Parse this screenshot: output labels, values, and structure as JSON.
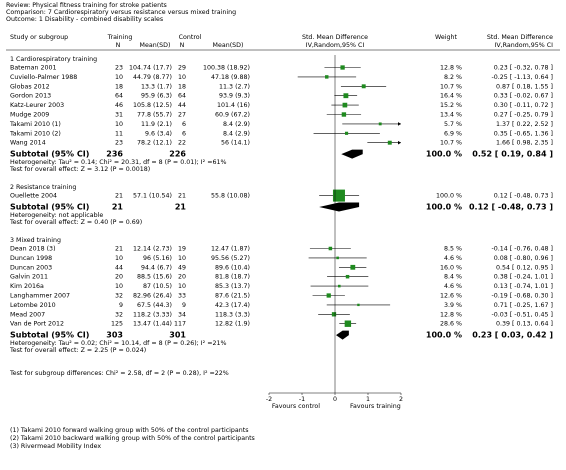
{
  "chart_data": {
    "type": "forest",
    "review": "Review:  Physical fitness training for stroke patients",
    "comparison": "Comparison:  7 Cardiorespiratory versus resistance versus mixed training",
    "outcome": "Outcome:  1 Disability - combined disability scales",
    "headers": [
      "Study or subgroup",
      "Training",
      "N",
      "Mean(SD)",
      "Control",
      "N",
      "Mean(SD)",
      "Std. Mean Difference",
      "IV,Random,95% CI",
      "Weight",
      "Std. Mean Difference",
      "IV,Random,95% CI"
    ],
    "color": "#1f8a1f",
    "groups": [
      {
        "label": "1 Cardiorespiratory training",
        "studies": [
          {
            "name": "Bateman 2001",
            "n1": 23,
            "ms1": "104.74 (17.7)",
            "n2": 29,
            "ms2": "100.38 (18.92)",
            "weight": 12.8,
            "weight_label": "12.8 %",
            "smd": [
              0.23,
              -0.32,
              0.78
            ],
            "smd_label": "0.23 [ -0.32, 0.78 ]"
          },
          {
            "name": "Cuviello-Palmer 1988",
            "n1": 10,
            "ms1": "44.79 (8.77)",
            "n2": 10,
            "ms2": "47.18 (9.88)",
            "weight": 8.2,
            "weight_label": "8.2 %",
            "smd": [
              -0.25,
              -1.13,
              0.64
            ],
            "smd_label": "-0.25 [ -1.13, 0.64 ]"
          },
          {
            "name": "Globas 2012",
            "n1": 18,
            "ms1": "13.3 (1.7)",
            "n2": 18,
            "ms2": "11.3 (2.7)",
            "weight": 10.7,
            "weight_label": "10.7 %",
            "smd": [
              0.87,
              0.18,
              1.55
            ],
            "smd_label": "0.87 [ 0.18, 1.55 ]"
          },
          {
            "name": "Gordon 2013",
            "n1": 64,
            "ms1": "95.9 (6.3)",
            "n2": 64,
            "ms2": "93.9 (9.3)",
            "weight": 16.4,
            "weight_label": "16.4 %",
            "smd": [
              0.33,
              -0.02,
              0.67
            ],
            "smd_label": "0.33 [ -0.02, 0.67 ]"
          },
          {
            "name": "Katz-Leurer 2003",
            "n1": 46,
            "ms1": "105.8 (12.5)",
            "n2": 44,
            "ms2": "101.4 (16)",
            "weight": 15.2,
            "weight_label": "15.2 %",
            "smd": [
              0.3,
              -0.11,
              0.72
            ],
            "smd_label": "0.30 [ -0.11, 0.72 ]"
          },
          {
            "name": "Mudge 2009",
            "n1": 31,
            "ms1": "77.8 (55.7)",
            "n2": 27,
            "ms2": "60.9 (67.2)",
            "weight": 13.4,
            "weight_label": "13.4 %",
            "smd": [
              0.27,
              -0.25,
              0.79
            ],
            "smd_label": "0.27 [ -0.25, 0.79 ]"
          },
          {
            "name": "Takami 2010 (1)",
            "n1": 10,
            "ms1": "11.9 (2.1)",
            "n2": 6,
            "ms2": "8.4 (2.9)",
            "weight": 5.7,
            "weight_label": "5.7 %",
            "smd": [
              1.37,
              0.22,
              2.52
            ],
            "smd_label": "1.37 [ 0.22, 2.52 ]"
          },
          {
            "name": "Takami 2010 (2)",
            "n1": 11,
            "ms1": "9.6 (3.4)",
            "n2": 6,
            "ms2": "8.4 (2.9)",
            "weight": 6.9,
            "weight_label": "6.9 %",
            "smd": [
              0.35,
              -0.65,
              1.36
            ],
            "smd_label": "0.35 [ -0.65, 1.36 ]"
          },
          {
            "name": "Wang 2014",
            "n1": 23,
            "ms1": "78.2 (12.1)",
            "n2": 22,
            "ms2": "56 (14.1)",
            "weight": 10.7,
            "weight_label": "10.7 %",
            "smd": [
              1.66,
              0.98,
              2.35
            ],
            "smd_label": "1.66 [ 0.98, 2.35 ]"
          }
        ],
        "subtotal": {
          "label": "Subtotal (95% CI)",
          "n1": 236,
          "n2": 226,
          "weight": 100.0,
          "weight_label": "100.0 %",
          "smd": [
            0.52,
            0.19,
            0.84
          ],
          "smd_label": "0.52 [ 0.19, 0.84 ]"
        },
        "heterogeneity": "Heterogeneity: Tau² = 0.14; Chi² = 20.31, df = 8 (P = 0.01); I² =61%",
        "overall_effect": "Test for overall effect: Z = 3.12 (P = 0.0018)"
      },
      {
        "label": "2 Resistance training",
        "studies": [
          {
            "name": "Ouellette 2004",
            "n1": 21,
            "ms1": "57.1 (10.54)",
            "n2": 21,
            "ms2": "55.8 (10.08)",
            "weight": 100.0,
            "weight_label": "100.0 %",
            "smd": [
              0.12,
              -0.48,
              0.73
            ],
            "smd_label": "0.12 [ -0.48, 0.73 ]"
          }
        ],
        "subtotal": {
          "label": "Subtotal (95% CI)",
          "n1": 21,
          "n2": 21,
          "weight": 100.0,
          "weight_label": "100.0 %",
          "smd": [
            0.12,
            -0.48,
            0.73
          ],
          "smd_label": "0.12 [ -0.48, 0.73 ]"
        },
        "heterogeneity": "Heterogeneity: not applicable",
        "overall_effect": "Test for overall effect: Z = 0.40 (P = 0.69)"
      },
      {
        "label": "3 Mixed training",
        "studies": [
          {
            "name": "Dean 2018 (3)",
            "n1": 21,
            "ms1": "12.14 (2.73)",
            "n2": 19,
            "ms2": "12.47 (1.87)",
            "weight": 8.5,
            "weight_label": "8.5 %",
            "smd": [
              -0.14,
              -0.76,
              0.48
            ],
            "smd_label": "-0.14 [ -0.76, 0.48 ]"
          },
          {
            "name": "Duncan 1998",
            "n1": 10,
            "ms1": "96 (5.16)",
            "n2": 10,
            "ms2": "95.56 (5.27)",
            "weight": 4.6,
            "weight_label": "4.6 %",
            "smd": [
              0.08,
              -0.8,
              0.96
            ],
            "smd_label": "0.08 [ -0.80, 0.96 ]"
          },
          {
            "name": "Duncan 2003",
            "n1": 44,
            "ms1": "94.4 (6.7)",
            "n2": 49,
            "ms2": "89.6 (10.4)",
            "weight": 16.0,
            "weight_label": "16.0 %",
            "smd": [
              0.54,
              0.12,
              0.95
            ],
            "smd_label": "0.54 [ 0.12, 0.95 ]"
          },
          {
            "name": "Galvin 2011",
            "n1": 20,
            "ms1": "88.5 (15.6)",
            "n2": 20,
            "ms2": "81.8 (18.7)",
            "weight": 8.4,
            "weight_label": "8.4 %",
            "smd": [
              0.38,
              -0.24,
              1.01
            ],
            "smd_label": "0.38 [ -0.24, 1.01 ]"
          },
          {
            "name": "Kim 2016a",
            "n1": 10,
            "ms1": "87 (10.5)",
            "n2": 10,
            "ms2": "85.3 (13.7)",
            "weight": 4.6,
            "weight_label": "4.6 %",
            "smd": [
              0.13,
              -0.74,
              1.01
            ],
            "smd_label": "0.13 [ -0.74, 1.01 ]"
          },
          {
            "name": "Langhammer 2007",
            "n1": 32,
            "ms1": "82.96 (26.4)",
            "n2": 33,
            "ms2": "87.6 (21.5)",
            "weight": 12.6,
            "weight_label": "12.6 %",
            "smd": [
              -0.19,
              -0.68,
              0.3
            ],
            "smd_label": "-0.19 [ -0.68, 0.30 ]"
          },
          {
            "name": "Letombe 2010",
            "n1": 9,
            "ms1": "67.5 (44.3)",
            "n2": 9,
            "ms2": "42.3 (17.4)",
            "weight": 3.9,
            "weight_label": "3.9 %",
            "smd": [
              0.71,
              -0.25,
              1.67
            ],
            "smd_label": "0.71 [ -0.25, 1.67 ]"
          },
          {
            "name": "Mead 2007",
            "n1": 32,
            "ms1": "118.2 (3.33)",
            "n2": 34,
            "ms2": "118.3 (3.3)",
            "weight": 12.8,
            "weight_label": "12.8 %",
            "smd": [
              -0.03,
              -0.51,
              0.45
            ],
            "smd_label": "-0.03 [ -0.51, 0.45 ]"
          },
          {
            "name": "Van de Port 2012",
            "n1": 125,
            "ms1": "13.47 (1.44)",
            "n2": 117,
            "ms2": "12.82 (1.9)",
            "weight": 28.6,
            "weight_label": "28.6 %",
            "smd": [
              0.39,
              0.13,
              0.64
            ],
            "smd_label": "0.39 [ 0.13, 0.64 ]"
          }
        ],
        "subtotal": {
          "label": "Subtotal (95% CI)",
          "n1": 303,
          "n2": 301,
          "weight": 100.0,
          "weight_label": "100.0 %",
          "smd": [
            0.23,
            0.03,
            0.42
          ],
          "smd_label": "0.23 [ 0.03, 0.42 ]"
        },
        "heterogeneity": "Heterogeneity: Tau² = 0.02; Chi² = 10.14, df = 8 (P = 0.26); I² =21%",
        "overall_effect": "Test for overall effect: Z = 2.25 (P = 0.024)"
      }
    ],
    "subgroup_test": "Test for subgroup differences: Chi² = 2.58, df = 2 (P = 0.28), I² =22%",
    "xlim": [
      -2,
      2
    ],
    "xticks": [
      -2,
      -1,
      0,
      1,
      2
    ],
    "xlabel_left": "Favours control",
    "xlabel_right": "Favours training",
    "footnotes": [
      "(1) Takami 2010 forward walking group with 50% of the control participants",
      "(2) Takami 2010 backward walking group with 50% of the control participants",
      "(3) Rivermead Mobility Index"
    ]
  }
}
